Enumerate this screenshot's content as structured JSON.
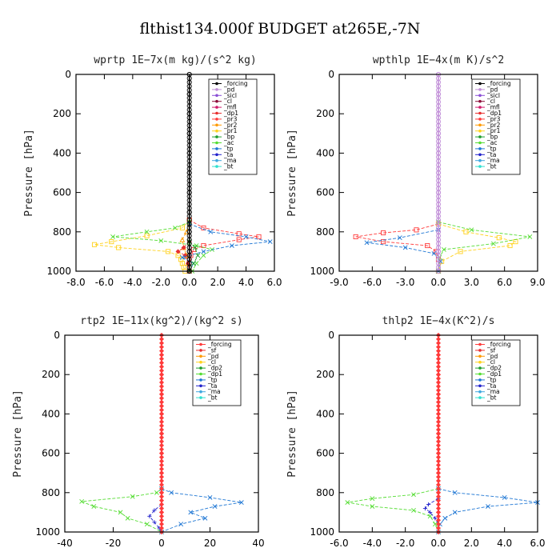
{
  "figure_title": "flthist134.000f  BUDGET at265E,-7N",
  "chart_data": [
    {
      "type": "line",
      "title": "wprtp  1E−7x(m kg)/(s^2 kg)",
      "ylabel": "Pressure [hPa]",
      "xlim": [
        -8,
        6
      ],
      "ylim": [
        1000,
        0
      ],
      "xticks": [
        "-8.0",
        "-6.0",
        "-4.0",
        "-2.0",
        "0.0",
        "2.0",
        "4.0",
        "6.0"
      ],
      "xtick_values": [
        -8,
        -6,
        -4,
        -2,
        0,
        2,
        4,
        6
      ],
      "yticks": [
        "0",
        "200",
        "400",
        "600",
        "800",
        "1000"
      ],
      "ytick_values": [
        0,
        200,
        400,
        600,
        800,
        1000
      ],
      "legend": [
        "_forcing",
        "_pd",
        "_sicl",
        "_cl",
        "_mfl",
        "_dp1",
        "_pr3",
        "_pr2",
        "_pr1",
        "_bp",
        "_ac",
        "_tp",
        "_ta",
        "_ma",
        "_bt"
      ],
      "series": [
        {
          "name": "_pr1",
          "color": "#ffd21f",
          "marker": "square",
          "pressure": [
            740,
            780,
            820,
            850,
            865,
            880,
            900,
            920,
            940,
            960,
            980,
            1000
          ],
          "values": [
            0,
            -0.5,
            -3,
            -5.5,
            -6.7,
            -5,
            -1.5,
            -0.8,
            -0.6,
            -0.5,
            -0.4,
            -0.3
          ]
        },
        {
          "name": "_pr2",
          "color": "#ff9a00",
          "marker": "triangle",
          "pressure": [
            760,
            800,
            840,
            880,
            920,
            960,
            1000
          ],
          "values": [
            0,
            -0.2,
            -0.5,
            -0.4,
            -0.2,
            -0.1,
            0
          ]
        },
        {
          "name": "_pr3",
          "color": "#ff3b3b",
          "marker": "square",
          "pressure": [
            740,
            780,
            810,
            825,
            840,
            870,
            890,
            920,
            1000
          ],
          "values": [
            0,
            1,
            3.5,
            4.9,
            3.5,
            1,
            0.3,
            0.1,
            0
          ]
        },
        {
          "name": "_dp1",
          "color": "#e83030",
          "marker": "diamond",
          "pressure": [
            850,
            880,
            900,
            920,
            960,
            1000
          ],
          "values": [
            0,
            -0.4,
            -0.8,
            -0.3,
            -0.1,
            0
          ]
        },
        {
          "name": "_ac",
          "color": "#55dd33",
          "marker": "x",
          "pressure": [
            750,
            780,
            800,
            825,
            845,
            870,
            890,
            920,
            960,
            1000
          ],
          "values": [
            0,
            -1,
            -3,
            -5.4,
            -2,
            0.5,
            1.6,
            1,
            0.5,
            0.2
          ]
        },
        {
          "name": "_tp",
          "color": "#1f77d4",
          "marker": "x",
          "pressure": [
            760,
            800,
            825,
            850,
            870,
            900,
            930,
            960,
            1000
          ],
          "values": [
            0,
            1.5,
            4,
            5.7,
            3,
            1,
            -0.5,
            0.3,
            0
          ]
        },
        {
          "name": "_bp",
          "color": "#1e9e2e",
          "marker": "x",
          "pressure": [
            850,
            880,
            920,
            960,
            1000
          ],
          "values": [
            0,
            0.4,
            0.6,
            0.3,
            0
          ]
        },
        {
          "name": "_forcing",
          "color": "#000000",
          "marker": "circle",
          "pressure": [
            0,
            100,
            200,
            300,
            400,
            500,
            600,
            700,
            800,
            900,
            1000
          ],
          "values": [
            0,
            0,
            0,
            0,
            0,
            0,
            0,
            0,
            0,
            0,
            0
          ]
        }
      ]
    },
    {
      "type": "line",
      "title": "wpthlp  1E−4x(m K)/s^2",
      "ylabel": "Pressure [hPa]",
      "xlim": [
        -9,
        9
      ],
      "ylim": [
        1000,
        0
      ],
      "xticks": [
        "-9.0",
        "-6.0",
        "-3.0",
        "0.0",
        "3.0",
        "6.0",
        "9.0"
      ],
      "xtick_values": [
        -9,
        -6,
        -3,
        0,
        3,
        6,
        9
      ],
      "yticks": [
        "0",
        "200",
        "400",
        "600",
        "800",
        "1000"
      ],
      "ytick_values": [
        0,
        200,
        400,
        600,
        800,
        1000
      ],
      "legend": [
        "_forcing",
        "_pd",
        "_sicl",
        "_cl",
        "_mfl",
        "_dp1",
        "_pr3",
        "_pr2",
        "_pr1",
        "_bp",
        "_ac",
        "_tp",
        "_ta",
        "_ma",
        "_bt"
      ],
      "series": [
        {
          "name": "_pr3",
          "color": "#ff3b3b",
          "marker": "square",
          "pressure": [
            760,
            790,
            805,
            825,
            850,
            870,
            900,
            940,
            1000
          ],
          "values": [
            0,
            -2,
            -5,
            -7.5,
            -5,
            -1,
            -0.2,
            0,
            0
          ]
        },
        {
          "name": "_pr1",
          "color": "#ffd21f",
          "marker": "square",
          "pressure": [
            760,
            800,
            830,
            850,
            870,
            900,
            950,
            1000
          ],
          "values": [
            0,
            2.5,
            5.5,
            7,
            6.5,
            2,
            0.3,
            0
          ]
        },
        {
          "name": "_ac",
          "color": "#55dd33",
          "marker": "x",
          "pressure": [
            750,
            790,
            825,
            860,
            890,
            930,
            1000
          ],
          "values": [
            0,
            3,
            8.3,
            5,
            0.5,
            0.1,
            0
          ]
        },
        {
          "name": "_tp",
          "color": "#1f77d4",
          "marker": "x",
          "pressure": [
            790,
            830,
            855,
            880,
            910,
            950,
            1000
          ],
          "values": [
            0,
            -3.5,
            -6.5,
            -3,
            -0.4,
            0.2,
            0
          ]
        },
        {
          "name": "_forcing",
          "color": "#c18fd8",
          "marker": "circle",
          "pressure": [
            0,
            100,
            200,
            300,
            400,
            500,
            600,
            700,
            800,
            900,
            1000
          ],
          "values": [
            0,
            0,
            0,
            0,
            0,
            0,
            0,
            0,
            0,
            0,
            0
          ]
        }
      ]
    },
    {
      "type": "line",
      "title": "rtp2  1E−11x(kg^2)/(kg^2 s)",
      "ylabel": "Pressure [hPa]",
      "xlim": [
        -40,
        40
      ],
      "ylim": [
        1000,
        0
      ],
      "xticks": [
        "-40",
        "-20",
        "0",
        "20",
        "40"
      ],
      "xtick_values": [
        -40,
        -20,
        0,
        20,
        40
      ],
      "yticks": [
        "0",
        "200",
        "400",
        "600",
        "800",
        "1000"
      ],
      "ytick_values": [
        0,
        200,
        400,
        600,
        800,
        1000
      ],
      "legend": [
        "_forcing",
        "_sf",
        "_pd",
        "_cl",
        "_dp2",
        "_dp1",
        "_tp",
        "_ta",
        "_ma",
        "_bt"
      ],
      "series": [
        {
          "name": "_dp1",
          "color": "#55dd33",
          "marker": "x",
          "pressure": [
            780,
            800,
            820,
            845,
            870,
            900,
            930,
            960,
            1000
          ],
          "values": [
            0,
            -2,
            -12,
            -33,
            -28,
            -17,
            -14,
            -6,
            0
          ]
        },
        {
          "name": "_tp",
          "color": "#1f77d4",
          "marker": "x",
          "pressure": [
            780,
            800,
            825,
            850,
            870,
            900,
            930,
            960,
            1000
          ],
          "values": [
            0,
            4,
            20,
            33,
            22,
            12,
            18,
            8,
            0
          ]
        },
        {
          "name": "_ta",
          "color": "#2222cc",
          "marker": "plus",
          "pressure": [
            860,
            890,
            920,
            950,
            980,
            1000
          ],
          "values": [
            0,
            -3,
            -5,
            -3,
            -1,
            0
          ]
        },
        {
          "name": "_forcing",
          "color": "#ff3b3b",
          "marker": "diamond",
          "pressure": [
            0,
            100,
            200,
            300,
            400,
            500,
            600,
            700,
            800,
            900,
            1000
          ],
          "values": [
            0,
            0,
            0,
            0,
            0,
            0,
            0,
            0,
            0,
            0,
            0
          ]
        }
      ]
    },
    {
      "type": "line",
      "title": "thlp2  1E−4x(K^2)/s",
      "ylabel": "Pressure [hPa]",
      "xlim": [
        -6,
        6
      ],
      "ylim": [
        1000,
        0
      ],
      "xticks": [
        "-6.0",
        "-4.0",
        "-2.0",
        "0.0",
        "2.0",
        "4.0",
        "6.0"
      ],
      "xtick_values": [
        -6,
        -4,
        -2,
        0,
        2,
        4,
        6
      ],
      "yticks": [
        "0",
        "200",
        "400",
        "600",
        "800",
        "1000"
      ],
      "ytick_values": [
        0,
        200,
        400,
        600,
        800,
        1000
      ],
      "legend": [
        "_forcing",
        "_sf",
        "_pd",
        "_cl",
        "_dp2",
        "_dp1",
        "_tp",
        "_ta",
        "_ma",
        "_bt"
      ],
      "series": [
        {
          "name": "_dp1",
          "color": "#55dd33",
          "marker": "x",
          "pressure": [
            780,
            810,
            830,
            850,
            870,
            890,
            920,
            960,
            1000
          ],
          "values": [
            0,
            -1.5,
            -4,
            -5.5,
            -4,
            -1.5,
            -0.5,
            -0.2,
            0
          ]
        },
        {
          "name": "_tp",
          "color": "#1f77d4",
          "marker": "x",
          "pressure": [
            780,
            800,
            825,
            850,
            870,
            900,
            930,
            960,
            1000
          ],
          "values": [
            0,
            1,
            4,
            6,
            3,
            1,
            0.4,
            0.1,
            0
          ]
        },
        {
          "name": "_ta",
          "color": "#2222cc",
          "marker": "plus",
          "pressure": [
            830,
            860,
            880,
            900,
            930,
            960,
            1000
          ],
          "values": [
            0,
            -0.6,
            -0.8,
            -0.5,
            -0.2,
            0,
            0
          ]
        },
        {
          "name": "_forcing",
          "color": "#ff3b3b",
          "marker": "diamond",
          "pressure": [
            0,
            100,
            200,
            300,
            400,
            500,
            600,
            700,
            800,
            900,
            1000
          ],
          "values": [
            0,
            0,
            0,
            0,
            0,
            0,
            0,
            0,
            0,
            0,
            0
          ]
        }
      ]
    }
  ]
}
